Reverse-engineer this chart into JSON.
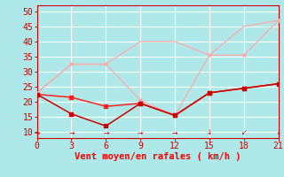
{
  "xlabel": "Vent moyen/en rafales ( km/h )",
  "xlabel_color": "#ff0000",
  "background_color": "#aee8e8",
  "grid_color": "#c8e8e8",
  "xlim": [
    0,
    21
  ],
  "ylim": [
    8,
    52
  ],
  "yticks": [
    10,
    15,
    20,
    25,
    30,
    35,
    40,
    45,
    50
  ],
  "xticks": [
    0,
    3,
    6,
    9,
    12,
    15,
    18,
    21
  ],
  "line_rafales_x": [
    0,
    3,
    6,
    9,
    12,
    15,
    18,
    21
  ],
  "line_rafales_y": [
    23.0,
    32.5,
    32.5,
    40.0,
    40.0,
    35.5,
    45.0,
    47.0
  ],
  "line_rafales2_x": [
    0,
    3,
    6,
    9,
    12,
    15,
    18,
    21
  ],
  "line_rafales2_y": [
    23.0,
    32.5,
    32.5,
    20.5,
    15.5,
    35.5,
    35.5,
    47.0
  ],
  "line_moy1_x": [
    0,
    3,
    6,
    9,
    12,
    15,
    18,
    21
  ],
  "line_moy1_y": [
    22.5,
    21.5,
    18.5,
    19.5,
    15.5,
    23.0,
    24.5,
    26.0
  ],
  "line_moy2_x": [
    0,
    3,
    6,
    9,
    12,
    15,
    18,
    21
  ],
  "line_moy2_y": [
    22.5,
    16.0,
    12.0,
    19.5,
    15.5,
    23.0,
    24.5,
    26.0
  ],
  "color_light_pink": "#ffaaaa",
  "color_red": "#ff2020",
  "color_dark_red": "#cc0000",
  "wind_arrows_x": [
    0,
    3,
    6,
    9,
    12,
    15,
    18,
    21
  ],
  "wind_arrows_sym": [
    "→",
    "→",
    "→",
    "→",
    "→",
    "↓",
    "↙",
    "↓"
  ],
  "tick_fontsize": 7,
  "xlabel_fontsize": 7.5
}
